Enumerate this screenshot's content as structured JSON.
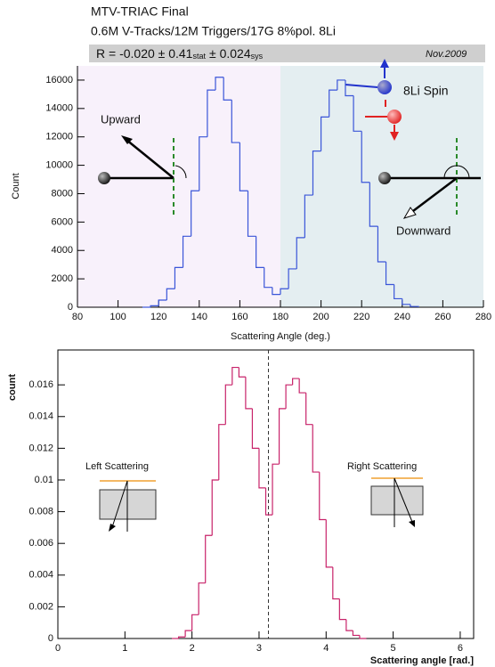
{
  "chart_data": [
    {
      "type": "histogram",
      "title": "MTV-TRIAC Final",
      "subtitle": "0.6M V-Tracks/12M Triggers/17G 8%pol. 8Li",
      "annotations": {
        "r_main": "R = -0.020 ± 0.41",
        "r_stat": "stat",
        "r_sys_main": "± 0.024",
        "r_sys": "sys",
        "date": "Nov.2009",
        "spin": "8Li Spin",
        "upward": "Upward",
        "downward": "Downward"
      },
      "xlabel": "Scattering Angle (deg.)",
      "ylabel": "Count",
      "bins": [
        112,
        116,
        120,
        124,
        128,
        132,
        136,
        140,
        144,
        148,
        152,
        156,
        160,
        164,
        168,
        172,
        176,
        180,
        184,
        188,
        192,
        196,
        200,
        204,
        208,
        212,
        216,
        220,
        224,
        228,
        232,
        236,
        240,
        244,
        248
      ],
      "values": [
        0,
        100,
        500,
        1300,
        2800,
        5000,
        8200,
        12000,
        15300,
        16200,
        14600,
        11600,
        8200,
        5000,
        2800,
        1400,
        900,
        1300,
        2700,
        4900,
        7900,
        11000,
        13400,
        15300,
        16000,
        14900,
        12400,
        8800,
        5700,
        3200,
        1600,
        600,
        200,
        50
      ],
      "color": "#3a55d8",
      "xlim": [
        80,
        280
      ],
      "ylim": [
        0,
        17000
      ],
      "xticks": [
        80,
        100,
        120,
        140,
        160,
        180,
        200,
        220,
        240,
        260,
        280
      ],
      "yticks": [
        0,
        2000,
        4000,
        6000,
        8000,
        10000,
        12000,
        14000,
        16000
      ]
    },
    {
      "type": "histogram",
      "annotations": {
        "left": "Left Scattering",
        "right": "Right Scattering"
      },
      "xlabel": "Scattering angle [rad.]",
      "ylabel": "count",
      "bins": [
        1.7,
        1.8,
        1.9,
        2.0,
        2.1,
        2.2,
        2.3,
        2.4,
        2.5,
        2.6,
        2.7,
        2.8,
        2.9,
        3.0,
        3.1,
        3.2,
        3.3,
        3.4,
        3.5,
        3.6,
        3.7,
        3.8,
        3.9,
        4.0,
        4.1,
        4.2,
        4.3,
        4.4,
        4.5,
        4.6
      ],
      "values": [
        0,
        0.0001,
        0.0005,
        0.0015,
        0.0035,
        0.0065,
        0.01,
        0.0135,
        0.016,
        0.0171,
        0.0165,
        0.0145,
        0.012,
        0.0095,
        0.0078,
        0.011,
        0.0145,
        0.016,
        0.0164,
        0.0155,
        0.0135,
        0.0105,
        0.0075,
        0.0045,
        0.0025,
        0.0012,
        0.0005,
        0.0002,
        0
      ],
      "color": "#c8236a",
      "reference_x": 3.14,
      "xlim": [
        0,
        6.2
      ],
      "ylim": [
        0,
        0.0182
      ],
      "xticks": [
        0,
        1,
        2,
        3,
        4,
        5,
        6
      ],
      "yticks": [
        0,
        0.002,
        0.004,
        0.006,
        0.008,
        0.01,
        0.012,
        0.014,
        0.016
      ]
    }
  ]
}
